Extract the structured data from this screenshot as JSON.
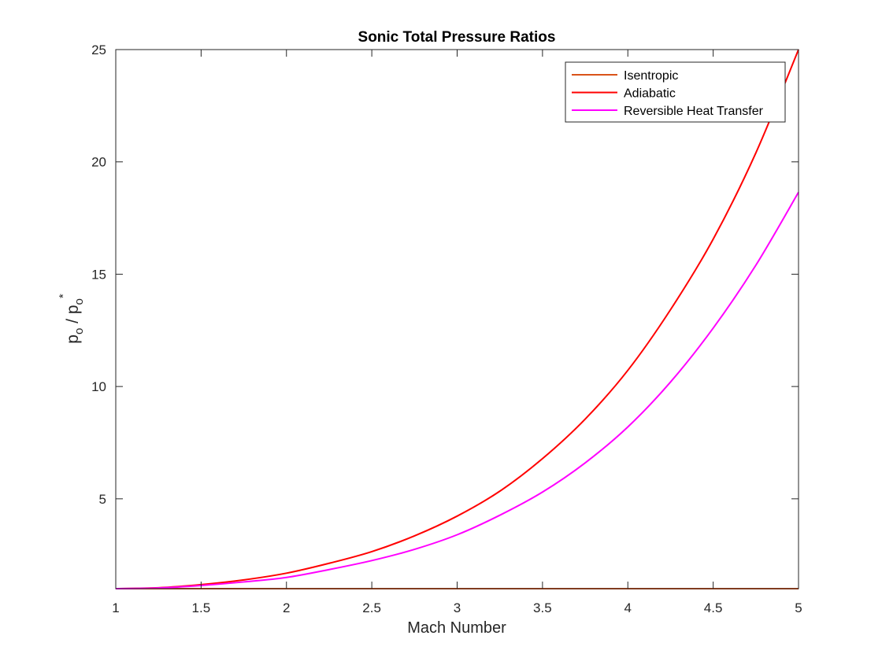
{
  "chart_data": {
    "type": "line",
    "title": "Sonic Total Pressure Ratios",
    "xlabel": "Mach Number",
    "ylabel": {
      "p1": "p",
      "sub1": "o",
      "slash": " / p",
      "sub2": "o",
      "sup": "*"
    },
    "xlim": [
      1,
      5
    ],
    "ylim": [
      1,
      25
    ],
    "xticks": [
      1,
      1.5,
      2,
      2.5,
      3,
      3.5,
      4,
      4.5,
      5
    ],
    "xtick_labels": [
      "1",
      "1.5",
      "2",
      "2.5",
      "3",
      "3.5",
      "4",
      "4.5",
      "5"
    ],
    "yticks": [
      5,
      10,
      15,
      20,
      25
    ],
    "ytick_labels": [
      "5",
      "10",
      "15",
      "20",
      "25"
    ],
    "grid": false,
    "legend_position": "top-right",
    "x": [
      1,
      1.25,
      1.5,
      1.75,
      2,
      2.25,
      2.5,
      2.75,
      3,
      3.25,
      3.5,
      3.75,
      4,
      4.25,
      4.5,
      4.75,
      5
    ],
    "series": [
      {
        "name": "Isentropic",
        "color": "#D95319",
        "values": [
          1,
          1,
          1,
          1,
          1,
          1,
          1,
          1,
          1,
          1,
          1,
          1,
          1,
          1,
          1,
          1,
          1
        ]
      },
      {
        "name": "Adiabatic",
        "color": "#FF0000",
        "values": [
          1,
          1.04,
          1.18,
          1.39,
          1.69,
          2.13,
          2.65,
          3.35,
          4.23,
          5.34,
          6.79,
          8.55,
          10.72,
          13.42,
          16.56,
          20.4,
          25
        ]
      },
      {
        "name": "Reversible Heat Transfer",
        "color": "#FF00FF",
        "values": [
          1,
          1.03,
          1.14,
          1.3,
          1.5,
          1.85,
          2.25,
          2.75,
          3.4,
          4.27,
          5.3,
          6.6,
          8.2,
          10.2,
          12.6,
          15.4,
          18.65
        ]
      }
    ]
  }
}
